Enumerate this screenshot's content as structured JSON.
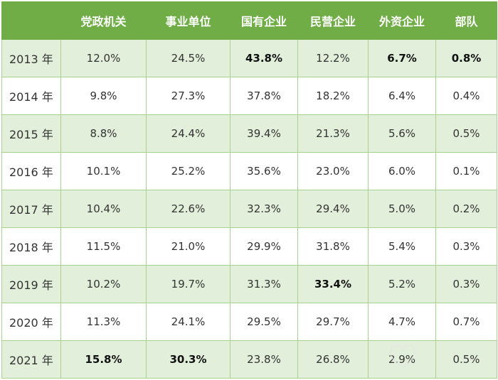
{
  "headers": [
    "",
    "党政机关",
    "事业单位",
    "国有企业",
    "民营企业",
    "外资企业",
    "部队"
  ],
  "rows": [
    {
      "year": "2013 年",
      "cells": [
        "12.0%",
        "24.5%",
        "43.8%",
        "12.2%",
        "6.7%",
        "0.8%"
      ],
      "bold": [
        false,
        false,
        true,
        false,
        true,
        true
      ]
    },
    {
      "year": "2014 年",
      "cells": [
        "9.8%",
        "27.3%",
        "37.8%",
        "18.2%",
        "6.4%",
        "0.4%"
      ],
      "bold": [
        false,
        false,
        false,
        false,
        false,
        false
      ]
    },
    {
      "year": "2015 年",
      "cells": [
        "8.8%",
        "24.4%",
        "39.4%",
        "21.3%",
        "5.6%",
        "0.5%"
      ],
      "bold": [
        false,
        false,
        false,
        false,
        false,
        false
      ]
    },
    {
      "year": "2016 年",
      "cells": [
        "10.1%",
        "25.2%",
        "35.6%",
        "23.0%",
        "6.0%",
        "0.1%"
      ],
      "bold": [
        false,
        false,
        false,
        false,
        false,
        false
      ]
    },
    {
      "year": "2017 年",
      "cells": [
        "10.4%",
        "22.6%",
        "32.3%",
        "29.4%",
        "5.0%",
        "0.2%"
      ],
      "bold": [
        false,
        false,
        false,
        false,
        false,
        false
      ]
    },
    {
      "year": "2018 年",
      "cells": [
        "11.5%",
        "21.0%",
        "29.9%",
        "31.8%",
        "5.4%",
        "0.3%"
      ],
      "bold": [
        false,
        false,
        false,
        false,
        false,
        false
      ]
    },
    {
      "year": "2019 年",
      "cells": [
        "10.2%",
        "19.7%",
        "31.3%",
        "33.4%",
        "5.2%",
        "0.3%"
      ],
      "bold": [
        false,
        false,
        false,
        true,
        false,
        false
      ]
    },
    {
      "year": "2020 年",
      "cells": [
        "11.3%",
        "24.1%",
        "29.5%",
        "29.7%",
        "4.7%",
        "0.7%"
      ],
      "bold": [
        false,
        false,
        false,
        false,
        false,
        false
      ]
    },
    {
      "year": "2021 年",
      "cells": [
        "15.8%",
        "30.3%",
        "23.8%",
        "26.8%",
        "2.9%",
        "0.5%"
      ],
      "bold": [
        true,
        true,
        false,
        false,
        false,
        false
      ]
    }
  ],
  "colors": {
    "header": "#70ad47",
    "shade": "#e2efda",
    "border": "#a9d18e"
  },
  "watermark_icon": "heart-logo-icon"
}
